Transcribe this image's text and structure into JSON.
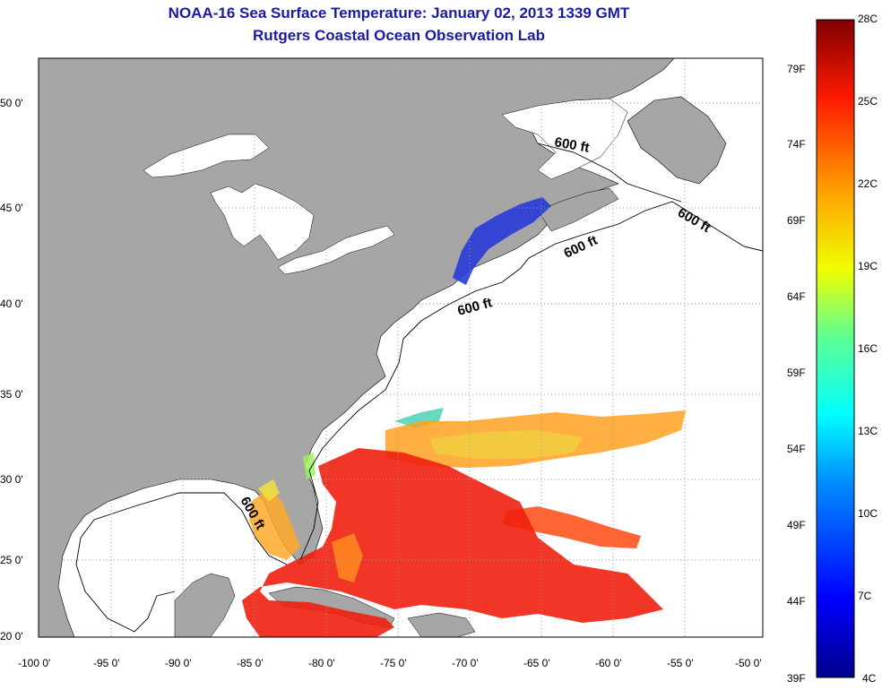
{
  "title": {
    "line1": "NOAA-16 Sea Surface Temperature:  January 02, 2013 1339 GMT",
    "line2": "Rutgers Coastal Ocean Observation Lab"
  },
  "map": {
    "lon_range": [
      -100,
      -50
    ],
    "lat_range": [
      20,
      52.5
    ],
    "lat_ticks": [
      "50 0'",
      "45 0'",
      "40 0'",
      "35 0'",
      "30 0'",
      "25 0'",
      "20 0'"
    ],
    "lon_ticks": [
      "-100 0'",
      "-95 0'",
      "-90 0'",
      "-85 0'",
      "-80 0'",
      "-75 0'",
      "-70 0'",
      "-65 0'",
      "-60 0'",
      "-55 0'",
      "-50 0'"
    ],
    "contour_label": "600 ft",
    "colors": {
      "land": "#a6a6a6",
      "ocean": "#ffffff",
      "grid": "#9a9a9a"
    }
  },
  "colorbar": {
    "celsius_labels": [
      "28C",
      "25C",
      "22C",
      "19C",
      "16C",
      "13C",
      "10C",
      "7C",
      "4C"
    ],
    "fahrenheit_labels": [
      "79F",
      "74F",
      "69F",
      "64F",
      "59F",
      "54F",
      "49F",
      "44F",
      "39F"
    ],
    "range_c": [
      4,
      28
    ]
  }
}
